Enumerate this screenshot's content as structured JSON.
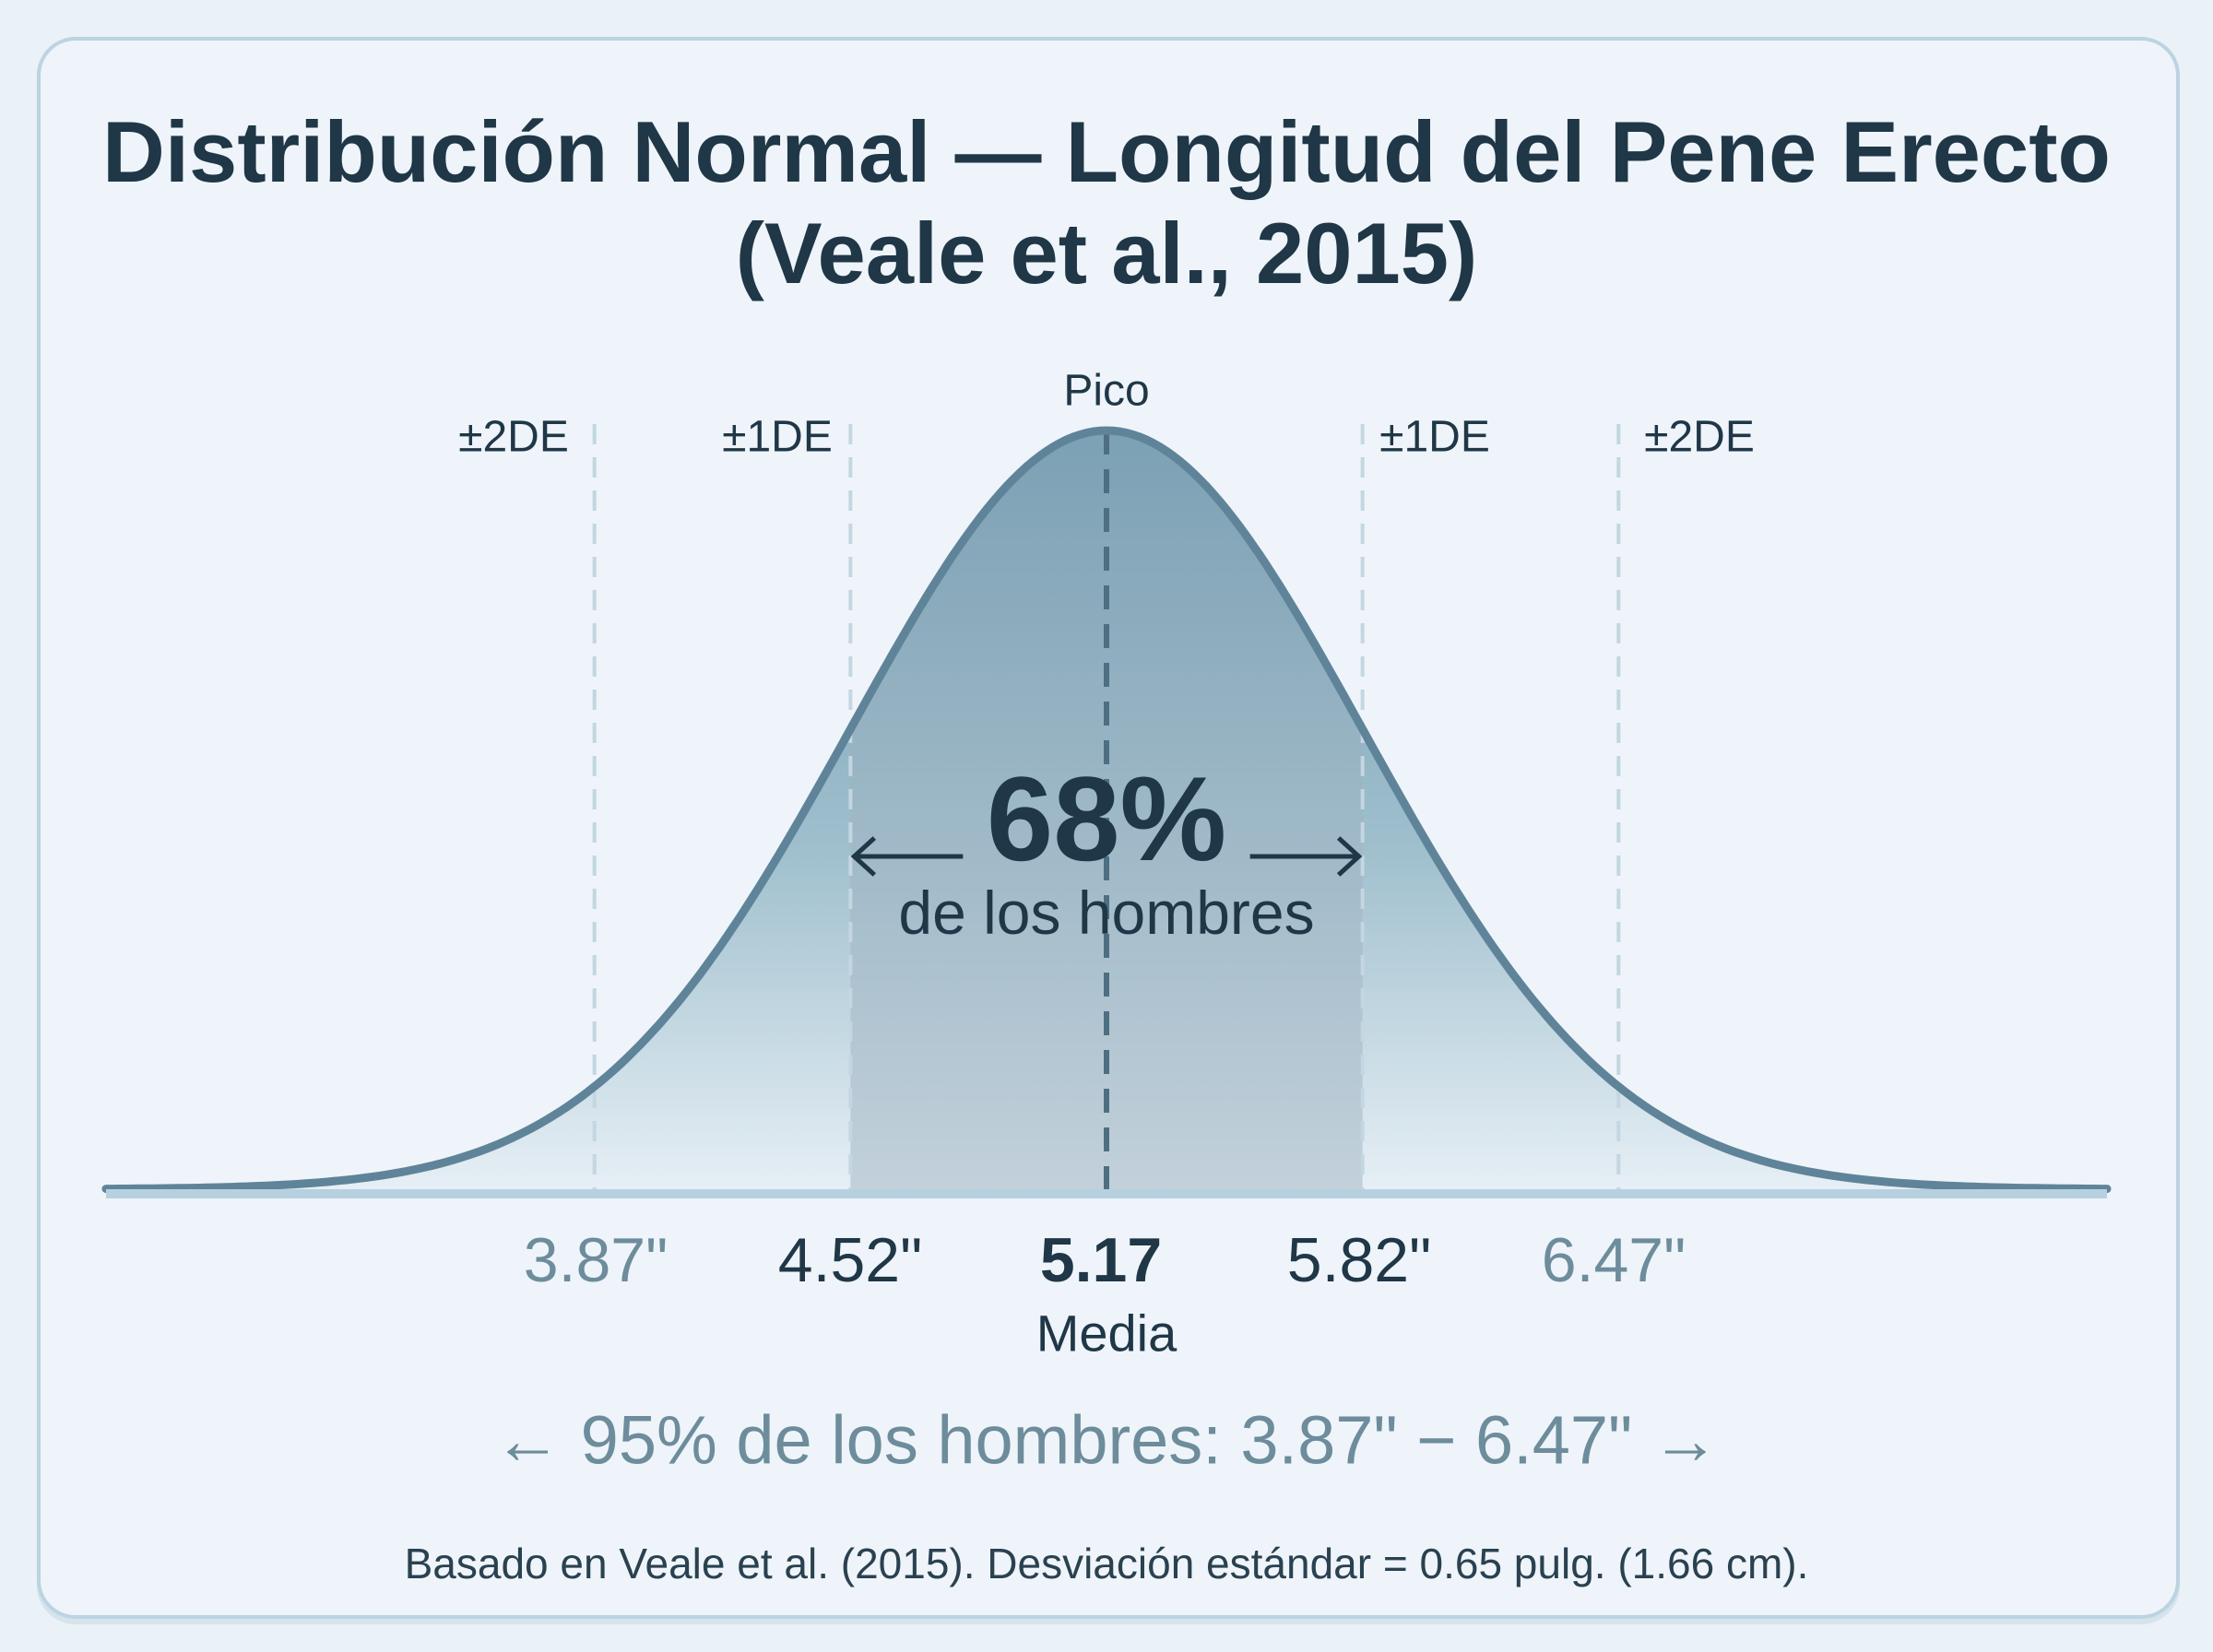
{
  "chart_data": {
    "type": "area",
    "title": "Distribución Normal — Longitud del Pene Erecto",
    "subtitle": "(Veale et al., 2015)",
    "distribution": "normal",
    "mean": 5.17,
    "sd": 0.65,
    "xlim": [
      2.63,
      7.71
    ],
    "peak_label": "Pico",
    "sd_markers": [
      {
        "label": "±2DE",
        "x": 3.87
      },
      {
        "label": "±1DE",
        "x": 4.52
      },
      {
        "label": "±1DE",
        "x": 5.82
      },
      {
        "label": "±2DE",
        "x": 6.47
      }
    ],
    "tick_labels": [
      "3.87\"",
      "4.52\"",
      "5.17",
      "5.82\"",
      "6.47\""
    ],
    "tick_values": [
      3.87,
      4.52,
      5.17,
      5.82,
      6.47
    ],
    "mean_label": "Media",
    "shaded_band": {
      "from": 4.52,
      "to": 5.82,
      "percent": "68%",
      "caption": "de los hombres"
    },
    "range_note": "95% de los hombres: 3.87\" − 6.47\"",
    "footnote": "Basado en Veale et al. (2015). Desviación estándar = 0.65 pulg. (1.66 cm).",
    "colors": {
      "curve": "#5f8499",
      "fill_top": "#6f9bb0",
      "band": "#a9bdcb",
      "axis": "#b7d0df",
      "text": "#1f3747",
      "muted": "#6d8c9c"
    }
  }
}
